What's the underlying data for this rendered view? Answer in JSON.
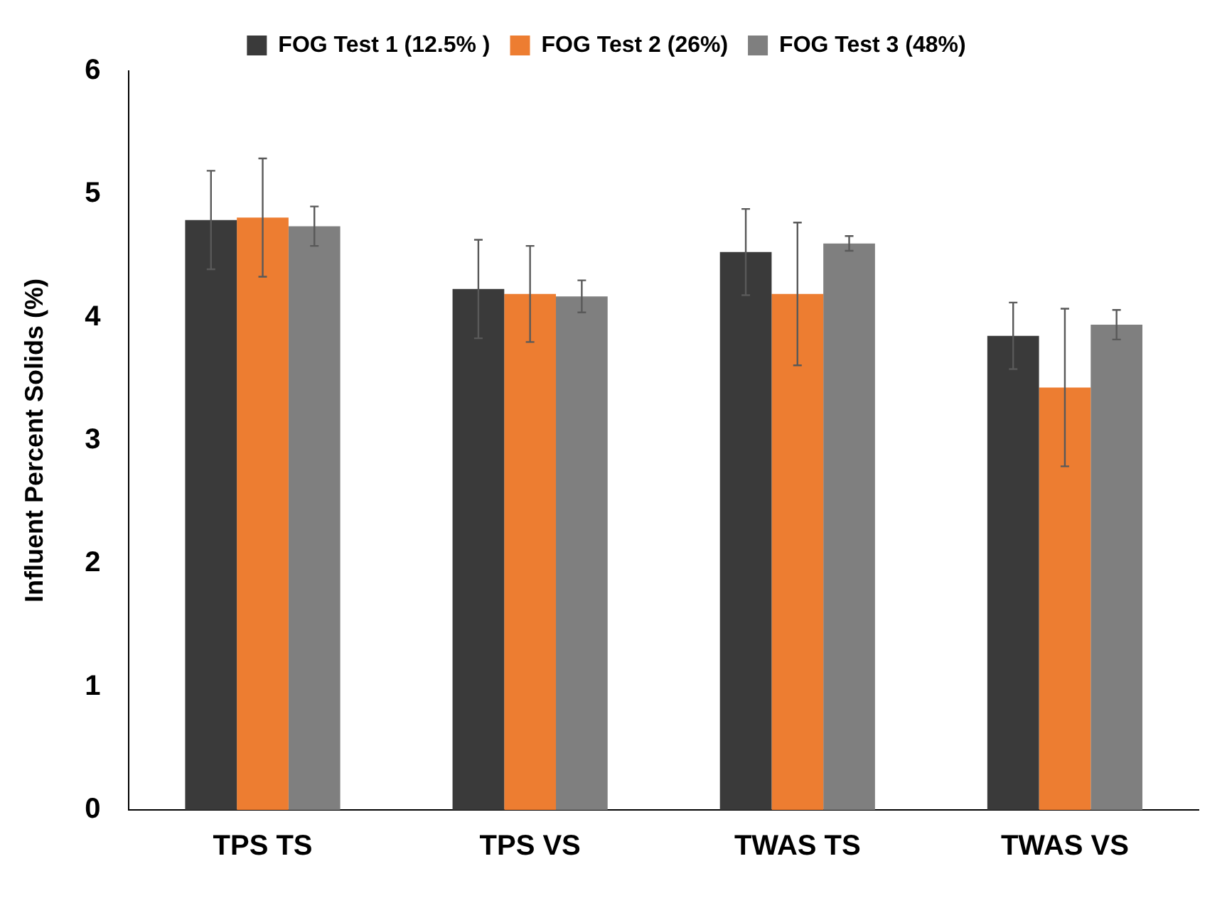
{
  "chart_data": {
    "type": "bar",
    "ylabel": "Influent Percent Solids (%)",
    "categories": [
      "TPS TS",
      "TPS VS",
      "TWAS TS",
      "TWAS VS"
    ],
    "series": [
      {
        "name": "FOG Test 1 (12.5% )",
        "color": "#3a3a3a",
        "values": [
          4.79,
          4.23,
          4.53,
          3.85
        ],
        "errors": [
          0.4,
          0.4,
          0.35,
          0.27
        ]
      },
      {
        "name": "FOG Test 2 (26%)",
        "color": "#ed7d31",
        "values": [
          4.81,
          4.19,
          4.19,
          3.43
        ],
        "errors": [
          0.48,
          0.39,
          0.58,
          0.64
        ]
      },
      {
        "name": "FOG Test 3 (48%)",
        "color": "#7f7f7f",
        "values": [
          4.74,
          4.17,
          4.6,
          3.94
        ],
        "errors": [
          0.16,
          0.13,
          0.06,
          0.12
        ]
      }
    ],
    "ylim": [
      0,
      6
    ],
    "yticks": [
      0,
      1,
      2,
      3,
      4,
      5,
      6
    ],
    "grid": false,
    "legend": "top"
  }
}
